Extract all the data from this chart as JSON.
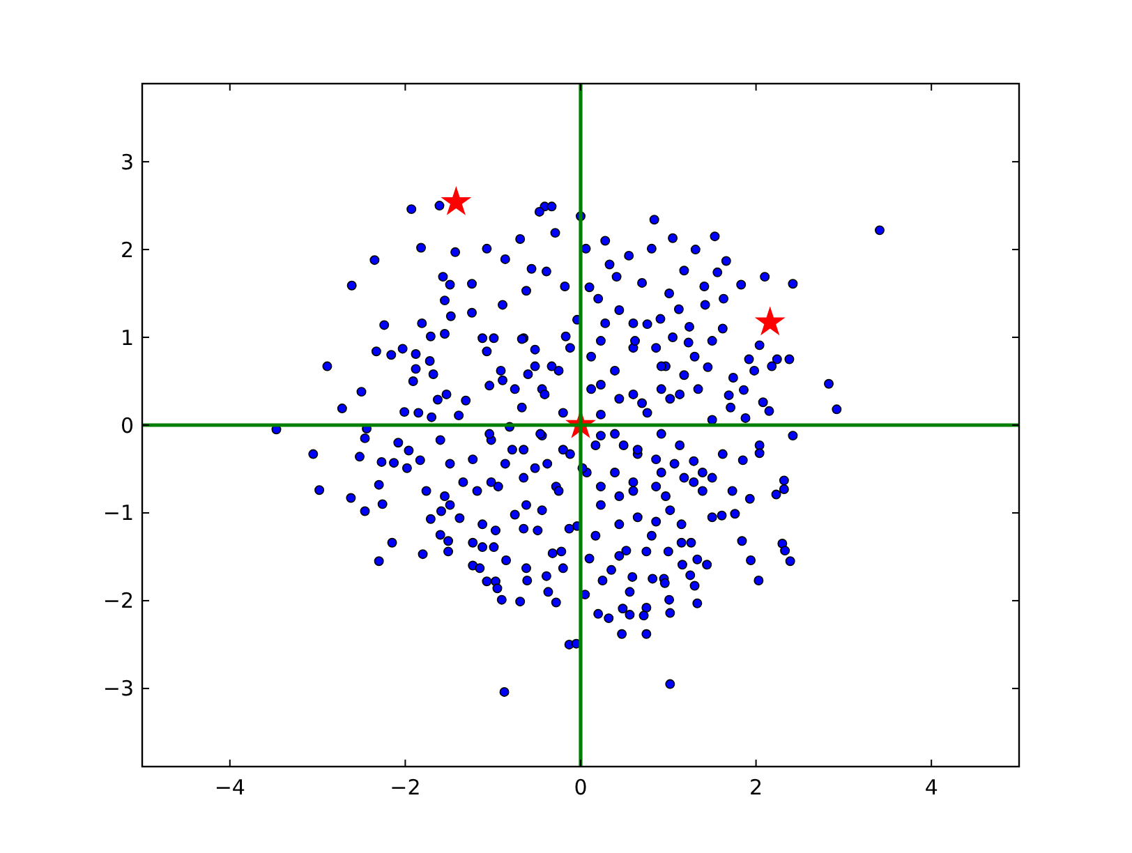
{
  "chart_data": {
    "type": "scatter",
    "xlim": [
      -5,
      5
    ],
    "ylim": [
      -3.89,
      3.89
    ],
    "xticks": [
      {
        "value": -4,
        "label": "−4"
      },
      {
        "value": -2,
        "label": "−2"
      },
      0,
      2,
      4
    ],
    "yticks": [
      {
        "value": -3,
        "label": "−3"
      },
      {
        "value": -2,
        "label": "−2"
      },
      {
        "value": -1,
        "label": "−1"
      },
      0,
      1,
      2,
      3
    ],
    "series": [
      {
        "color": "#0000ff",
        "marker": "circle",
        "x": [
          -1.93,
          -1.61,
          -1.82,
          -1.43,
          -2.35,
          -2.61,
          -2.24,
          -1.81,
          -2.89,
          -2.72,
          -2.5,
          -2.33,
          -2.16,
          -2.01,
          -0.41,
          -0.33,
          -0.47,
          -1.07,
          -0.69,
          -0.29,
          0.0,
          -1.57,
          -1.49,
          -1.24,
          -0.86,
          -0.56,
          -0.39,
          -0.62,
          -0.18,
          -1.55,
          -0.89,
          -1.48,
          -1.24,
          -1.71,
          -1.55,
          -1.12,
          -0.65,
          -0.17,
          -2.03,
          -1.88,
          -1.88,
          -1.91,
          -1.72,
          -1.68,
          -1.63,
          -1.85,
          -1.7,
          -1.53,
          -1.39,
          -1.31,
          -1.07,
          -1.04,
          -0.91,
          -0.75,
          -0.6,
          -0.44,
          -0.33,
          -0.52,
          -0.12,
          -0.04,
          3.41,
          0.84,
          1.53,
          1.05,
          0.81,
          1.31,
          0.06,
          0.55,
          1.66,
          2.1,
          2.42,
          1.83,
          1.18,
          1.56,
          1.41,
          1.63,
          1.01,
          1.12,
          1.42,
          1.62,
          1.24,
          0.91,
          2.04,
          2.38,
          2.24,
          2.18,
          1.92,
          1.98,
          1.74,
          2.83,
          2.92,
          2.15,
          2.08,
          1.86,
          1.69,
          1.88,
          1.45,
          1.3,
          1.5,
          1.23,
          1.05,
          0.76,
          0.6,
          0.44,
          0.28,
          0.2,
          0.1,
          0.41,
          0.33,
          0.28,
          0.7,
          1.18,
          0.97,
          0.86,
          0.6,
          1.13,
          1.34,
          0.92,
          0.7,
          0.44,
          0.23,
          0.12,
          1.5,
          1.71,
          -3.47,
          -3.05,
          -2.98,
          -2.62,
          -2.46,
          -2.52,
          -2.46,
          -2.44,
          -2.27,
          -2.3,
          -2.26,
          -2.3,
          -2.15,
          -2.08,
          -1.98,
          -2.13,
          -1.96,
          -1.83,
          -1.76,
          -1.8,
          -1.71,
          -1.6,
          -1.51,
          -1.51,
          -1.55,
          -1.59,
          -1.49,
          -1.6,
          -1.49,
          -1.38,
          -1.23,
          -1.23,
          -1.15,
          -1.07,
          -0.97,
          -0.95,
          -0.9,
          -0.87,
          -0.85,
          -0.69,
          -0.62,
          -0.61,
          -0.37,
          -0.28,
          -0.39,
          -0.32,
          -0.2,
          -0.13,
          -0.05,
          -0.13,
          -0.22,
          -0.04,
          -0.49,
          -0.65,
          -0.44,
          -0.75,
          -0.97,
          -1.12,
          -1.12,
          -0.99,
          -1.34,
          -1.18,
          -1.02,
          -0.86,
          -0.65,
          -0.65,
          -0.38,
          -0.28,
          -0.12,
          -1.02,
          -1.23,
          -0.44,
          -0.81,
          2.42,
          2.04,
          2.04,
          1.85,
          2.32,
          2.23,
          2.32,
          1.93,
          1.73,
          1.76,
          1.61,
          1.84,
          2.3,
          2.33,
          2.39,
          1.94,
          2.03,
          1.62,
          1.33,
          1.3,
          1.25,
          1.44,
          1.33,
          1.16,
          1.02,
          1.01,
          1.02,
          0.75,
          0.47,
          0.75,
          0.72,
          0.56,
          0.48,
          0.32,
          0.2,
          0.05,
          0.56,
          0.59,
          0.82,
          0.95,
          0.96,
          1.0,
          1.15,
          1.26,
          1.15,
          0.75,
          0.52,
          0.25,
          0.35,
          0.44,
          0.1,
          0.17,
          0.81,
          0.86,
          0.65,
          0.44,
          1.5,
          1.39,
          1.29,
          1.18,
          1.39,
          1.5,
          1.02,
          0.97,
          1.29,
          1.07,
          0.86,
          0.65,
          0.49,
          0.23,
          0.07,
          0.23,
          0.44,
          0.6,
          0.86,
          1.13,
          -0.99,
          -0.67,
          0.23,
          0.62,
          -0.52,
          -0.25,
          0.39,
          0.92,
          -0.89,
          -0.41,
          0.12,
          0.6,
          1.02,
          -0.67,
          -0.2,
          0.23,
          0.76,
          -1.04,
          -0.46,
          0.39,
          0.92,
          -0.78,
          -0.2,
          0.17,
          0.65,
          -0.52,
          0.02,
          0.39,
          0.92,
          -0.94,
          -0.25,
          0.6,
          -0.62,
          0.23
        ],
        "values": [
          2.46,
          2.5,
          2.02,
          1.97,
          1.88,
          1.59,
          1.14,
          1.16,
          0.67,
          0.19,
          0.38,
          0.84,
          0.8,
          0.15,
          2.49,
          2.49,
          2.43,
          2.01,
          2.12,
          2.19,
          2.38,
          1.69,
          1.6,
          1.61,
          1.89,
          1.78,
          1.75,
          1.53,
          1.58,
          1.42,
          1.37,
          1.24,
          1.28,
          1.01,
          1.04,
          0.99,
          0.99,
          1.01,
          0.87,
          0.81,
          0.64,
          0.5,
          0.73,
          0.58,
          0.29,
          0.14,
          0.09,
          0.35,
          0.11,
          0.28,
          0.84,
          0.45,
          0.62,
          0.41,
          0.58,
          0.41,
          0.67,
          0.86,
          0.88,
          1.2,
          2.22,
          2.34,
          2.15,
          2.13,
          2.01,
          2.0,
          2.01,
          1.93,
          1.87,
          1.69,
          1.61,
          1.6,
          1.76,
          1.74,
          1.58,
          1.44,
          1.5,
          1.32,
          1.37,
          1.1,
          1.12,
          1.21,
          0.91,
          0.75,
          0.75,
          0.67,
          0.75,
          0.62,
          0.54,
          0.47,
          0.18,
          0.16,
          0.26,
          0.4,
          0.34,
          0.08,
          0.66,
          0.78,
          0.96,
          0.94,
          1.0,
          1.15,
          1.16,
          1.31,
          1.16,
          1.44,
          1.57,
          1.69,
          1.83,
          2.1,
          1.62,
          0.57,
          0.67,
          0.88,
          0.88,
          0.35,
          0.41,
          0.41,
          0.25,
          0.3,
          0.46,
          0.78,
          0.06,
          0.2,
          -0.05,
          -0.33,
          -0.74,
          -0.83,
          -0.98,
          -0.36,
          -0.15,
          -0.04,
          -0.42,
          -0.68,
          -0.9,
          -1.55,
          -1.34,
          -0.2,
          -0.49,
          -0.43,
          -0.29,
          -0.4,
          -0.75,
          -1.47,
          -1.07,
          -1.25,
          -1.32,
          -1.44,
          -0.81,
          -0.98,
          -0.91,
          -0.17,
          -0.44,
          -1.06,
          -1.34,
          -1.6,
          -1.63,
          -1.78,
          -1.78,
          -1.86,
          -1.99,
          -3.04,
          -1.54,
          -2.01,
          -1.63,
          -1.77,
          -1.9,
          -2.02,
          -1.72,
          -1.46,
          -1.63,
          -2.5,
          -2.49,
          -1.18,
          -1.44,
          -1.15,
          -1.2,
          -1.18,
          -0.97,
          -1.02,
          -1.2,
          -1.13,
          -1.39,
          -1.39,
          -0.65,
          -0.75,
          -0.65,
          -0.44,
          -0.6,
          -0.28,
          -0.44,
          -0.7,
          -0.33,
          -0.17,
          -0.39,
          -0.12,
          -0.02,
          -0.12,
          -0.23,
          -0.32,
          -0.4,
          -0.63,
          -0.79,
          -0.73,
          -0.84,
          -0.75,
          -1.01,
          -1.03,
          -1.32,
          -1.35,
          -1.43,
          -1.55,
          -1.54,
          -1.77,
          -0.33,
          -2.03,
          -1.83,
          -1.71,
          -1.59,
          -1.53,
          -1.59,
          -2.95,
          -1.99,
          -2.14,
          -2.38,
          -2.38,
          -2.08,
          -2.17,
          -2.16,
          -2.09,
          -2.2,
          -2.15,
          -1.93,
          -1.9,
          -1.73,
          -1.75,
          -1.75,
          -1.8,
          -1.44,
          -1.34,
          -1.34,
          -1.13,
          -1.44,
          -1.43,
          -1.77,
          -1.65,
          -1.49,
          -1.52,
          -1.26,
          -1.26,
          -1.1,
          -1.05,
          -1.13,
          -1.05,
          -0.75,
          -0.65,
          -0.6,
          -0.54,
          -0.6,
          -0.97,
          -0.81,
          -0.41,
          -0.44,
          -0.39,
          -0.33,
          -0.23,
          -0.12,
          -0.54,
          -0.7,
          -0.81,
          -0.65,
          -0.7,
          -0.23,
          0.99,
          0.98,
          0.96,
          0.96,
          0.67,
          0.62,
          0.62,
          0.67,
          0.51,
          0.35,
          0.41,
          0.35,
          0.3,
          0.2,
          0.14,
          0.12,
          0.14,
          -0.1,
          -0.1,
          -0.1,
          -0.1,
          -0.28,
          -0.28,
          -0.23,
          -0.28,
          -0.49,
          -0.49,
          -0.54,
          -0.54,
          -0.7,
          -0.75,
          -0.75,
          -0.91,
          -0.91
        ]
      },
      {
        "color": "#ff0000",
        "marker": "star",
        "x": [
          -1.42,
          2.16,
          0
        ],
        "values": [
          2.54,
          1.17,
          0
        ]
      },
      {
        "type": "line",
        "color": "#008000",
        "x": [
          0,
          0
        ],
        "values": [
          -3.89,
          3.89
        ]
      },
      {
        "type": "line",
        "color": "#008000",
        "x": [
          -5,
          5
        ],
        "values": [
          0,
          0
        ]
      }
    ]
  }
}
